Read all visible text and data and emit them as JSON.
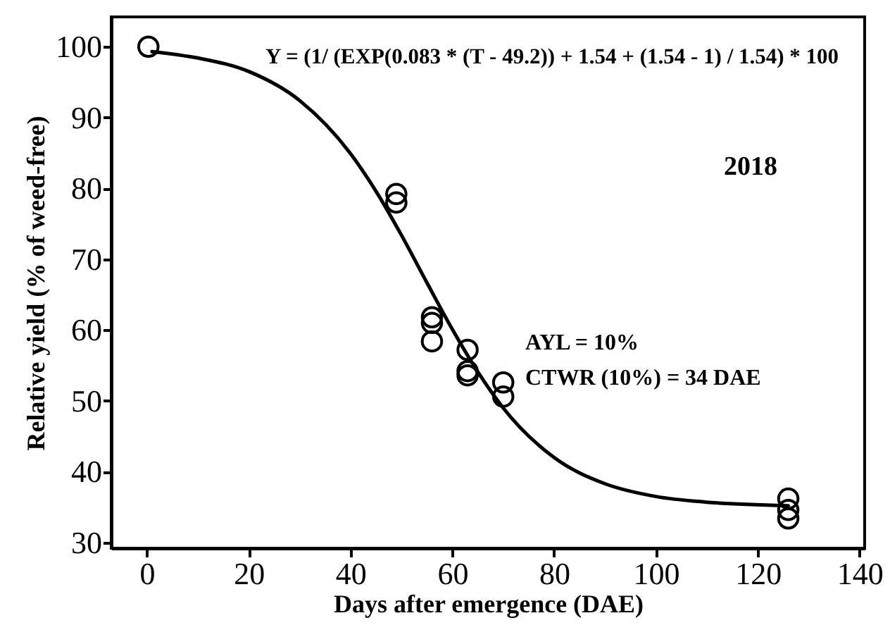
{
  "chart_data": {
    "type": "scatter",
    "xlabel": "Days after emergence (DAE)",
    "ylabel": "Relative yield (% of weed-free)",
    "annotations": [
      "Y = (1/ (EXP(0.083 * (T - 49.2)) + 1.54 + (1.54 - 1) / 1.54) * 100",
      "2018",
      "AYL = 10%",
      "CTWR (10%) = 34 DAE"
    ],
    "xlim": [
      -7,
      141
    ],
    "xticks": [
      0,
      20,
      40,
      60,
      80,
      100,
      120,
      140
    ],
    "ylim": [
      29.2,
      104.2
    ],
    "yticks": [
      30,
      40,
      50,
      60,
      70,
      80,
      90,
      100
    ],
    "marker": "circle",
    "grid": false,
    "series": [
      {
        "color": "#000000",
        "x": [
          0.3,
          49,
          49,
          56,
          56,
          56,
          63,
          63,
          63,
          70,
          70,
          126,
          126,
          126
        ],
        "values": [
          100,
          79.2,
          78,
          61.8,
          61,
          58.4,
          57.2,
          54.2,
          53.6,
          52.6,
          50.6,
          36.2,
          34.6,
          33.4
        ]
      },
      {
        "type": "line",
        "color": "#000000",
        "marker": "none",
        "x": [
          1,
          10,
          20,
          30,
          40,
          45,
          50,
          55,
          60,
          65,
          70,
          80,
          90,
          100,
          110,
          126
        ],
        "values": [
          99.3,
          98.4,
          96.5,
          92.4,
          84.9,
          79.6,
          73.4,
          66.7,
          60.1,
          54.1,
          49,
          42,
          38.3,
          36.5,
          35.7,
          35.2
        ]
      }
    ]
  }
}
